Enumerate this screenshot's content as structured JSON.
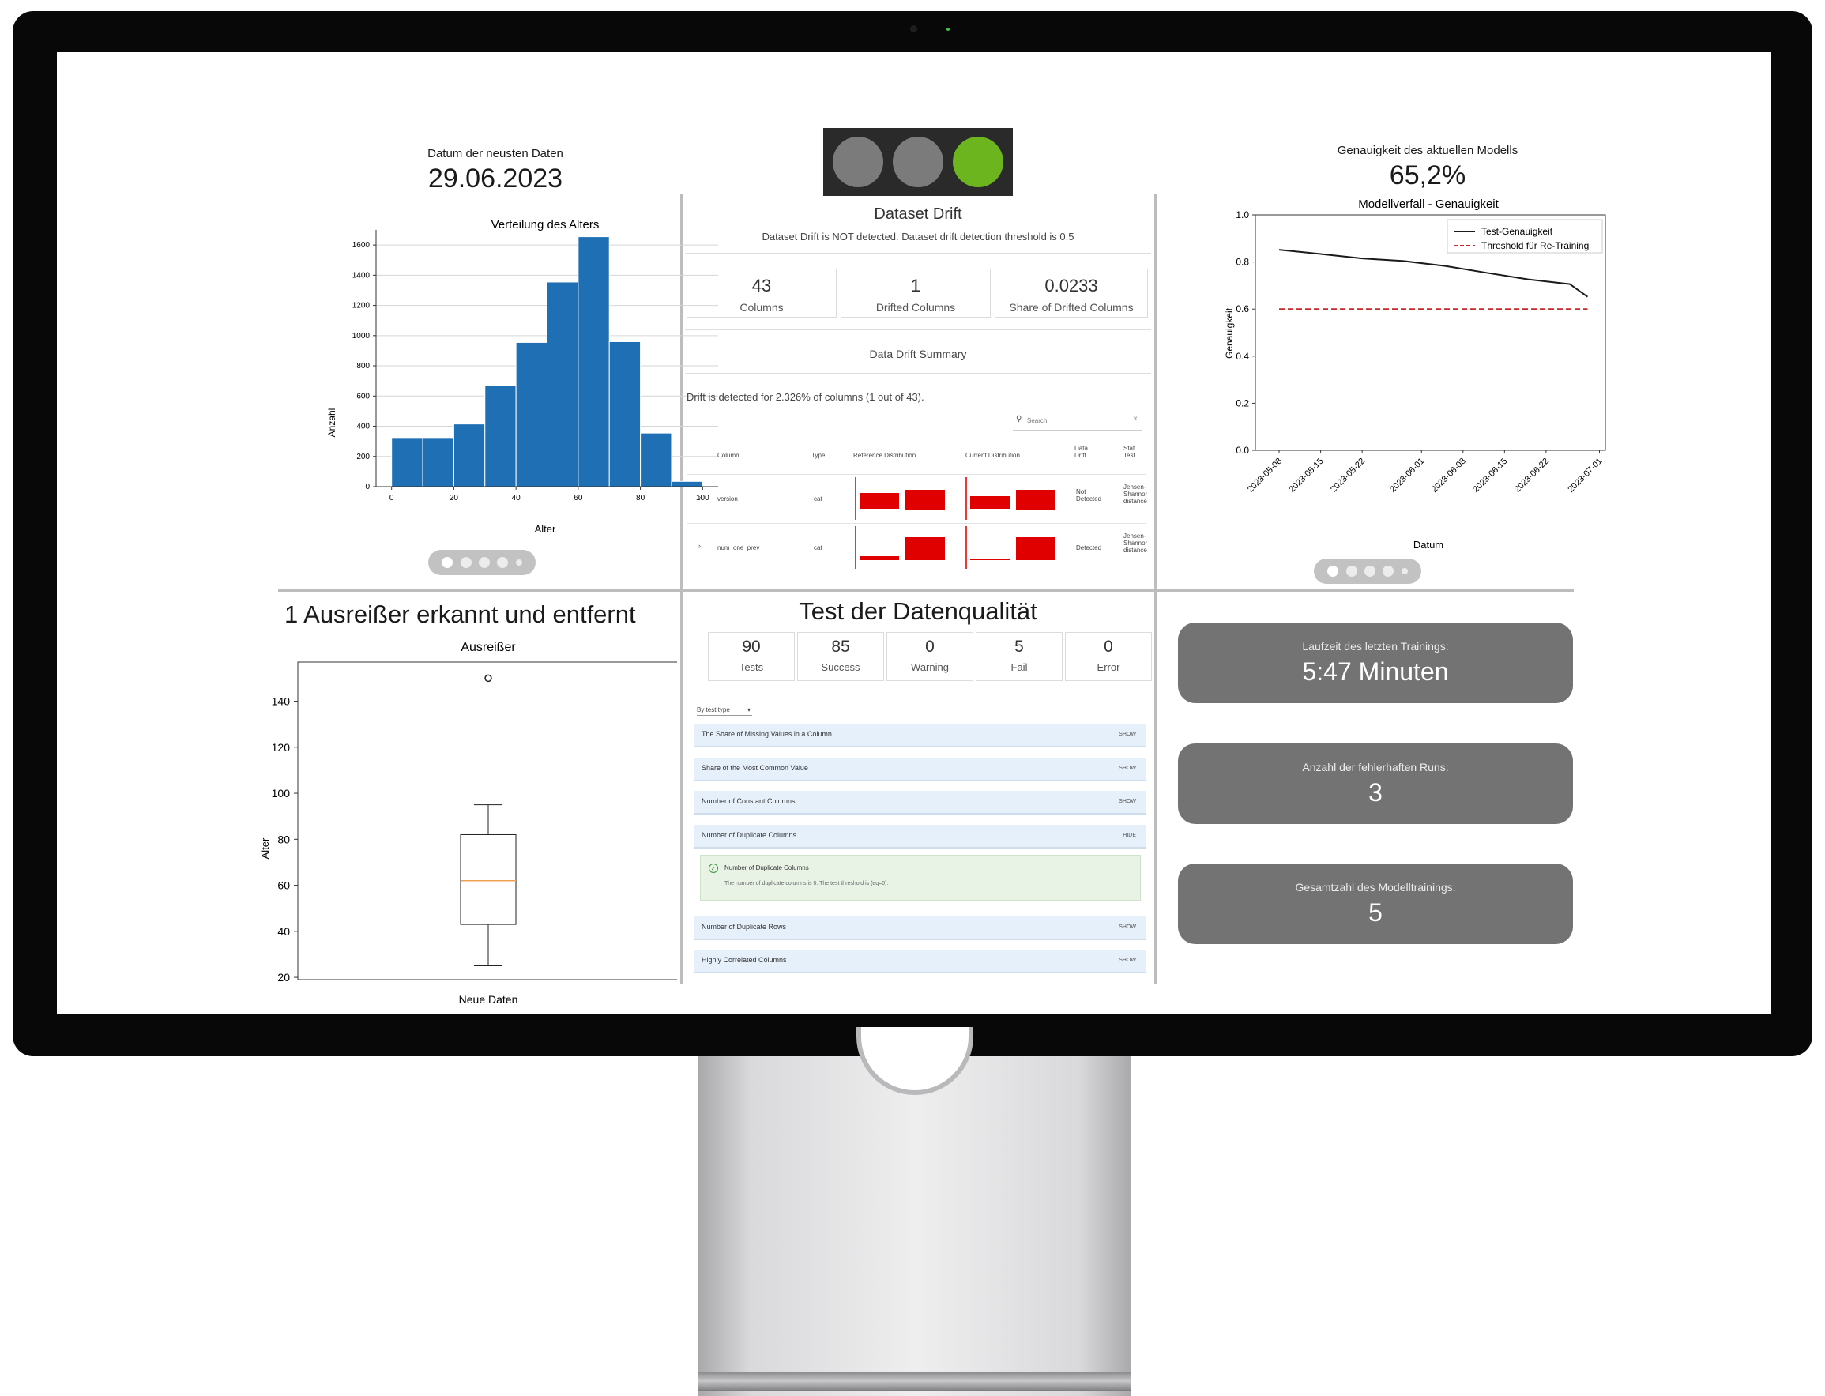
{
  "header": {
    "date_label": "Datum der neusten Daten",
    "date_value": "29.06.2023",
    "accuracy_label": "Genauigkeit des aktuellen Modells",
    "accuracy_value": "65,2%"
  },
  "traffic_light": {
    "active": "green",
    "colors": {
      "off": "#7b7b7b",
      "green": "#6cb51f"
    }
  },
  "histogram": {
    "chart_data": {
      "type": "bar",
      "title": "Verteilung des Alters",
      "xlabel": "Alter",
      "ylabel": "Anzahl",
      "bin_edges": [
        0,
        10,
        20,
        30,
        40,
        50,
        60,
        70,
        80,
        90,
        100
      ],
      "values": [
        320,
        320,
        415,
        670,
        955,
        1355,
        1655,
        960,
        355,
        35
      ],
      "x_ticks": [
        "0",
        "20",
        "40",
        "60",
        "80",
        "100"
      ],
      "y_ticks": [
        "0",
        "200",
        "400",
        "600",
        "800",
        "1000",
        "1200",
        "1400",
        "1600"
      ],
      "ylim": [
        0,
        1700
      ],
      "xlim": [
        -5,
        105
      ],
      "grid": "horizontal",
      "color": "#1f6fb4"
    }
  },
  "drift": {
    "title": "Dataset Drift",
    "subtitle": "Dataset Drift is NOT detected. Dataset drift detection threshold is 0.5",
    "stats": [
      {
        "value": "43",
        "label": "Columns"
      },
      {
        "value": "1",
        "label": "Drifted Columns"
      },
      {
        "value": "0.0233",
        "label": "Share of Drifted Columns"
      }
    ],
    "summary_title": "Data Drift Summary",
    "detected_text": "Drift is detected for 2.326% of columns (1 out of 43).",
    "search_placeholder": "Search",
    "headers": [
      "Column",
      "Type",
      "Reference Distribution",
      "Current Distribution",
      "Data Drift",
      "Stat Test"
    ],
    "rows": [
      {
        "column": "version",
        "type": "cat",
        "drift": "Not Detected",
        "test": "Jensen-Shannon distance"
      },
      {
        "column": "num_one_prev",
        "type": "cat",
        "drift": "Detected",
        "test": "Jensen-Shannon distance"
      }
    ]
  },
  "accuracy_chart": {
    "chart_data": {
      "type": "line",
      "title": "Modellverfall - Genauigkeit",
      "xlabel": "Datum",
      "ylabel": "Genauigkeit",
      "x": [
        "2023-05-08",
        "2023-05-15",
        "2023-05-22",
        "2023-05-29",
        "2023-06-05",
        "2023-06-12",
        "2023-06-19",
        "2023-06-26",
        "2023-06-29"
      ],
      "series": [
        {
          "name": "Test-Genauigkeit",
          "values": [
            0.852,
            0.834,
            0.815,
            0.804,
            0.783,
            0.754,
            0.726,
            0.706,
            0.652
          ],
          "color": "#1a1a1a",
          "style": "solid"
        },
        {
          "name": "Threshold für Re-Training",
          "values": [
            0.6,
            0.6,
            0.6,
            0.6,
            0.6,
            0.6,
            0.6,
            0.6,
            0.6
          ],
          "color": "#c62828",
          "style": "dashed"
        }
      ],
      "x_ticks": [
        "2023-05-08",
        "2023-05-15",
        "2023-05-22",
        "2023-06-01",
        "2023-06-08",
        "2023-06-15",
        "2023-06-22",
        "2023-07-01"
      ],
      "y_ticks": [
        "0.0",
        "0.2",
        "0.4",
        "0.6",
        "0.8",
        "1.0"
      ],
      "ylim": [
        0,
        1
      ],
      "legend": "top-right"
    }
  },
  "outlier": {
    "heading": "1 Ausreißer erkannt und entfernt",
    "chart_data": {
      "type": "box",
      "title": "Ausreißer",
      "xlabel": "Neue Daten",
      "ylabel": "Alter",
      "whisker_low": 25,
      "q1": 43,
      "median": 62,
      "q3": 82,
      "whisker_high": 95,
      "outliers": [
        150
      ],
      "y_ticks": [
        "20",
        "40",
        "60",
        "80",
        "100",
        "120",
        "140"
      ],
      "ylim": [
        19,
        157
      ]
    }
  },
  "quality": {
    "title": "Test der Datenqualität",
    "stats": [
      {
        "value": "90",
        "label": "Tests"
      },
      {
        "value": "85",
        "label": "Success"
      },
      {
        "value": "0",
        "label": "Warning"
      },
      {
        "value": "5",
        "label": "Fail"
      },
      {
        "value": "0",
        "label": "Error"
      }
    ],
    "filter_label": "By test type",
    "tests": [
      {
        "name": "The Share of Missing Values in a Column",
        "action": "SHOW"
      },
      {
        "name": "Share of the Most Common Value",
        "action": "SHOW"
      },
      {
        "name": "Number of Constant Columns",
        "action": "SHOW"
      },
      {
        "name": "Number of Duplicate Columns",
        "action": "HIDE"
      },
      {
        "name": "Number of Duplicate Rows",
        "action": "SHOW"
      },
      {
        "name": "Highly Correlated Columns",
        "action": "SHOW"
      }
    ],
    "detail_title": "Number of Duplicate Columns",
    "detail_text": "The number of duplicate columns is 0. The test threshold is (eq=0)."
  },
  "cards": [
    {
      "label": "Laufzeit des letzten Trainings:",
      "value": "5:47 Minuten"
    },
    {
      "label": "Anzahl der fehlerhaften Runs:",
      "value": "3"
    },
    {
      "label": "Gesamtzahl des Modelltrainings:",
      "value": "5"
    }
  ]
}
